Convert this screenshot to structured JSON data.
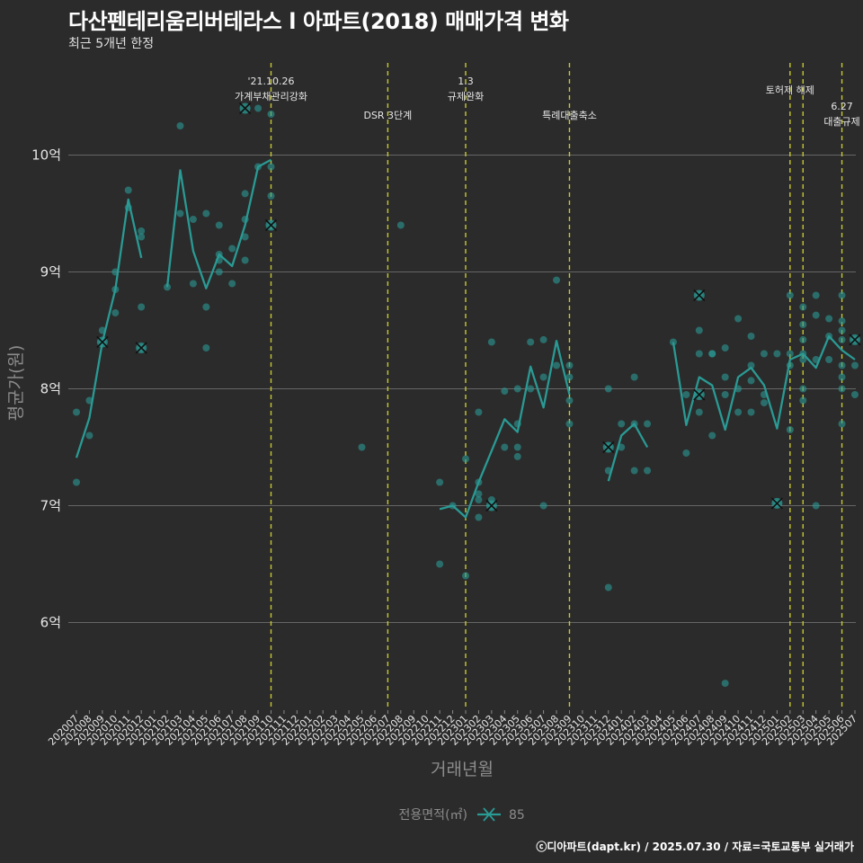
{
  "title": "다산펜테리움리버테라스 l  아파트(2018) 매매가격 변화",
  "subtitle": "최근 5개년 한정",
  "credit": "ⓒ디아파트(dapt.kr) / 2025.07.30 / 자료=국토교통부 실거래가",
  "colors": {
    "background": "#2b2b2b",
    "series": "#2a9a94",
    "event_line": "#c8c832",
    "grid": "#666666",
    "text": "#e6e6e6",
    "axis_title": "#8c8c8c"
  },
  "chart_data": {
    "type": "line",
    "xlabel": "거래년월",
    "ylabel": "평균가(원)",
    "ylim": [
      5.25,
      10.85
    ],
    "y_ticks": [
      {
        "value": 6,
        "label": "6억"
      },
      {
        "value": 7,
        "label": "7억"
      },
      {
        "value": 8,
        "label": "8억"
      },
      {
        "value": 9,
        "label": "9억"
      },
      {
        "value": 10,
        "label": "10억"
      }
    ],
    "x_categories": [
      "202007",
      "202008",
      "202009",
      "202010",
      "202011",
      "202012",
      "202101",
      "202102",
      "202103",
      "202104",
      "202105",
      "202106",
      "202107",
      "202108",
      "202109",
      "202110",
      "202111",
      "202112",
      "202201",
      "202202",
      "202203",
      "202204",
      "202205",
      "202206",
      "202207",
      "202208",
      "202209",
      "202210",
      "202211",
      "202212",
      "202301",
      "202302",
      "202303",
      "202304",
      "202305",
      "202306",
      "202307",
      "202308",
      "202309",
      "202310",
      "202311",
      "202312",
      "202401",
      "202402",
      "202403",
      "202404",
      "202405",
      "202406",
      "202407",
      "202408",
      "202409",
      "202410",
      "202411",
      "202412",
      "202501",
      "202502",
      "202503",
      "202504",
      "202505",
      "202506",
      "202507"
    ],
    "legend": {
      "title": "전용면적(㎡)",
      "entries": [
        "85"
      ],
      "position": "bottom"
    },
    "series": [
      {
        "name": "85",
        "mean_line": [
          [
            [
              0,
              7.41
            ],
            [
              1,
              7.75
            ],
            [
              2,
              8.4
            ],
            [
              3,
              8.85
            ],
            [
              4,
              9.62
            ],
            [
              5,
              9.12
            ]
          ],
          [
            [
              7,
              8.87
            ],
            [
              8,
              9.87
            ],
            [
              9,
              9.18
            ],
            [
              10,
              8.86
            ],
            [
              11,
              9.15
            ],
            [
              12,
              9.05
            ],
            [
              13,
              9.4
            ],
            [
              14,
              9.9
            ],
            [
              15,
              9.96
            ]
          ],
          [
            [
              28,
              6.97
            ],
            [
              29,
              7.0
            ],
            [
              30,
              6.9
            ],
            [
              31,
              7.2
            ],
            [
              32,
              7.47
            ],
            [
              33,
              7.74
            ],
            [
              34,
              7.63
            ],
            [
              35,
              8.19
            ],
            [
              36,
              7.84
            ],
            [
              37,
              8.41
            ],
            [
              38,
              7.95
            ]
          ],
          [
            [
              41,
              7.21
            ],
            [
              42,
              7.6
            ],
            [
              43,
              7.7
            ],
            [
              44,
              7.5
            ]
          ],
          [
            [
              46,
              8.4
            ],
            [
              47,
              7.69
            ],
            [
              48,
              8.1
            ],
            [
              49,
              8.03
            ],
            [
              50,
              7.65
            ],
            [
              51,
              8.1
            ],
            [
              52,
              8.18
            ],
            [
              53,
              8.03
            ],
            [
              54,
              7.66
            ],
            [
              55,
              8.25
            ],
            [
              56,
              8.3
            ],
            [
              57,
              8.18
            ],
            [
              58,
              8.45
            ],
            [
              59,
              8.33
            ],
            [
              60,
              8.25
            ]
          ]
        ],
        "points": [
          [
            0,
            7.8
          ],
          [
            0,
            7.2
          ],
          [
            1,
            7.6
          ],
          [
            1,
            7.9
          ],
          [
            2,
            8.4
          ],
          [
            2,
            8.5
          ],
          [
            3,
            8.65
          ],
          [
            3,
            8.85
          ],
          [
            3,
            9.0
          ],
          [
            4,
            9.7
          ],
          [
            4,
            9.55
          ],
          [
            5,
            8.7
          ],
          [
            5,
            9.3
          ],
          [
            5,
            9.35
          ],
          [
            5,
            8.35
          ],
          [
            7,
            8.87
          ],
          [
            8,
            10.25
          ],
          [
            8,
            9.5
          ],
          [
            9,
            9.45
          ],
          [
            9,
            8.9
          ],
          [
            10,
            8.7
          ],
          [
            10,
            8.35
          ],
          [
            10,
            9.5
          ],
          [
            11,
            9.0
          ],
          [
            11,
            9.4
          ],
          [
            11,
            9.1
          ],
          [
            11,
            9.15
          ],
          [
            12,
            8.9
          ],
          [
            12,
            9.2
          ],
          [
            13,
            9.67
          ],
          [
            13,
            9.3
          ],
          [
            13,
            9.45
          ],
          [
            13,
            9.1
          ],
          [
            14,
            9.9
          ],
          [
            14,
            10.4
          ],
          [
            15,
            10.35
          ],
          [
            15,
            9.9
          ],
          [
            15,
            9.65
          ],
          [
            15,
            9.4
          ],
          [
            22,
            7.5
          ],
          [
            25,
            9.4
          ],
          [
            28,
            7.2
          ],
          [
            28,
            6.5
          ],
          [
            29,
            7.0
          ],
          [
            30,
            6.4
          ],
          [
            30,
            7.4
          ],
          [
            31,
            7.2
          ],
          [
            31,
            7.8
          ],
          [
            31,
            7.1
          ],
          [
            31,
            6.9
          ],
          [
            31,
            7.05
          ],
          [
            32,
            7.0
          ],
          [
            32,
            7.05
          ],
          [
            32,
            8.4
          ],
          [
            33,
            7.5
          ],
          [
            33,
            7.98
          ],
          [
            34,
            7.7
          ],
          [
            34,
            7.5
          ],
          [
            34,
            7.42
          ],
          [
            34,
            8.0
          ],
          [
            35,
            8.4
          ],
          [
            35,
            8.0
          ],
          [
            36,
            8.42
          ],
          [
            36,
            7.0
          ],
          [
            36,
            8.1
          ],
          [
            37,
            8.93
          ],
          [
            37,
            8.2
          ],
          [
            38,
            8.2
          ],
          [
            38,
            8.1
          ],
          [
            38,
            7.9
          ],
          [
            38,
            7.7
          ],
          [
            41,
            8.0
          ],
          [
            41,
            7.3
          ],
          [
            41,
            6.3
          ],
          [
            41,
            7.5
          ],
          [
            42,
            7.5
          ],
          [
            42,
            7.7
          ],
          [
            43,
            7.7
          ],
          [
            43,
            8.1
          ],
          [
            43,
            7.3
          ],
          [
            44,
            7.7
          ],
          [
            44,
            7.3
          ],
          [
            46,
            8.4
          ],
          [
            47,
            7.45
          ],
          [
            47,
            7.95
          ],
          [
            48,
            8.8
          ],
          [
            48,
            8.5
          ],
          [
            48,
            8.3
          ],
          [
            48,
            7.8
          ],
          [
            48,
            7.95
          ],
          [
            49,
            7.6
          ],
          [
            49,
            8.3
          ],
          [
            49,
            8.3
          ],
          [
            50,
            8.35
          ],
          [
            50,
            8.1
          ],
          [
            50,
            7.95
          ],
          [
            50,
            5.48
          ],
          [
            51,
            8.6
          ],
          [
            51,
            7.8
          ],
          [
            51,
            8.0
          ],
          [
            52,
            8.45
          ],
          [
            52,
            8.2
          ],
          [
            52,
            7.8
          ],
          [
            52,
            8.07
          ],
          [
            53,
            7.95
          ],
          [
            53,
            8.3
          ],
          [
            53,
            7.88
          ],
          [
            54,
            8.3
          ],
          [
            54,
            7.02
          ],
          [
            55,
            8.8
          ],
          [
            55,
            8.2
          ],
          [
            55,
            7.65
          ],
          [
            55,
            8.3
          ],
          [
            56,
            8.7
          ],
          [
            56,
            8.55
          ],
          [
            56,
            8.3
          ],
          [
            56,
            8.42
          ],
          [
            56,
            8.25
          ],
          [
            56,
            7.9
          ],
          [
            56,
            8.0
          ],
          [
            57,
            8.63
          ],
          [
            57,
            8.8
          ],
          [
            57,
            8.25
          ],
          [
            57,
            7.0
          ],
          [
            58,
            8.45
          ],
          [
            58,
            8.6
          ],
          [
            58,
            8.25
          ],
          [
            59,
            8.8
          ],
          [
            59,
            8.58
          ],
          [
            59,
            8.5
          ],
          [
            59,
            8.42
          ],
          [
            59,
            8.2
          ],
          [
            59,
            8.1
          ],
          [
            59,
            8.0
          ],
          [
            59,
            7.7
          ],
          [
            60,
            8.42
          ],
          [
            60,
            8.2
          ],
          [
            60,
            7.95
          ]
        ],
        "x_marks": [
          [
            2,
            8.4
          ],
          [
            5,
            8.35
          ],
          [
            13,
            10.4
          ],
          [
            15,
            9.4
          ],
          [
            32,
            7.0
          ],
          [
            41,
            7.5
          ],
          [
            48,
            8.8
          ],
          [
            48,
            7.95
          ],
          [
            54,
            7.02
          ],
          [
            60,
            8.42
          ]
        ]
      }
    ],
    "annotations": [
      {
        "x": 15,
        "lines": [
          "'21.10.26",
          "가계부채관리강화"
        ],
        "tier": "high"
      },
      {
        "x": 24,
        "lines": [
          "DSR 3단계"
        ],
        "tier": "low"
      },
      {
        "x": 30,
        "lines": [
          "1.3",
          "규제완화"
        ],
        "tier": "high"
      },
      {
        "x": 38,
        "lines": [
          "특례대출축소"
        ],
        "tier": "low"
      },
      {
        "x": 55,
        "lines": [
          "토허제 해제"
        ],
        "tier": "mid"
      },
      {
        "x": 56,
        "lines": [],
        "tier": "none"
      },
      {
        "x": 59,
        "lines": [
          "6.27",
          "대출규제"
        ],
        "tier": "right"
      }
    ]
  }
}
